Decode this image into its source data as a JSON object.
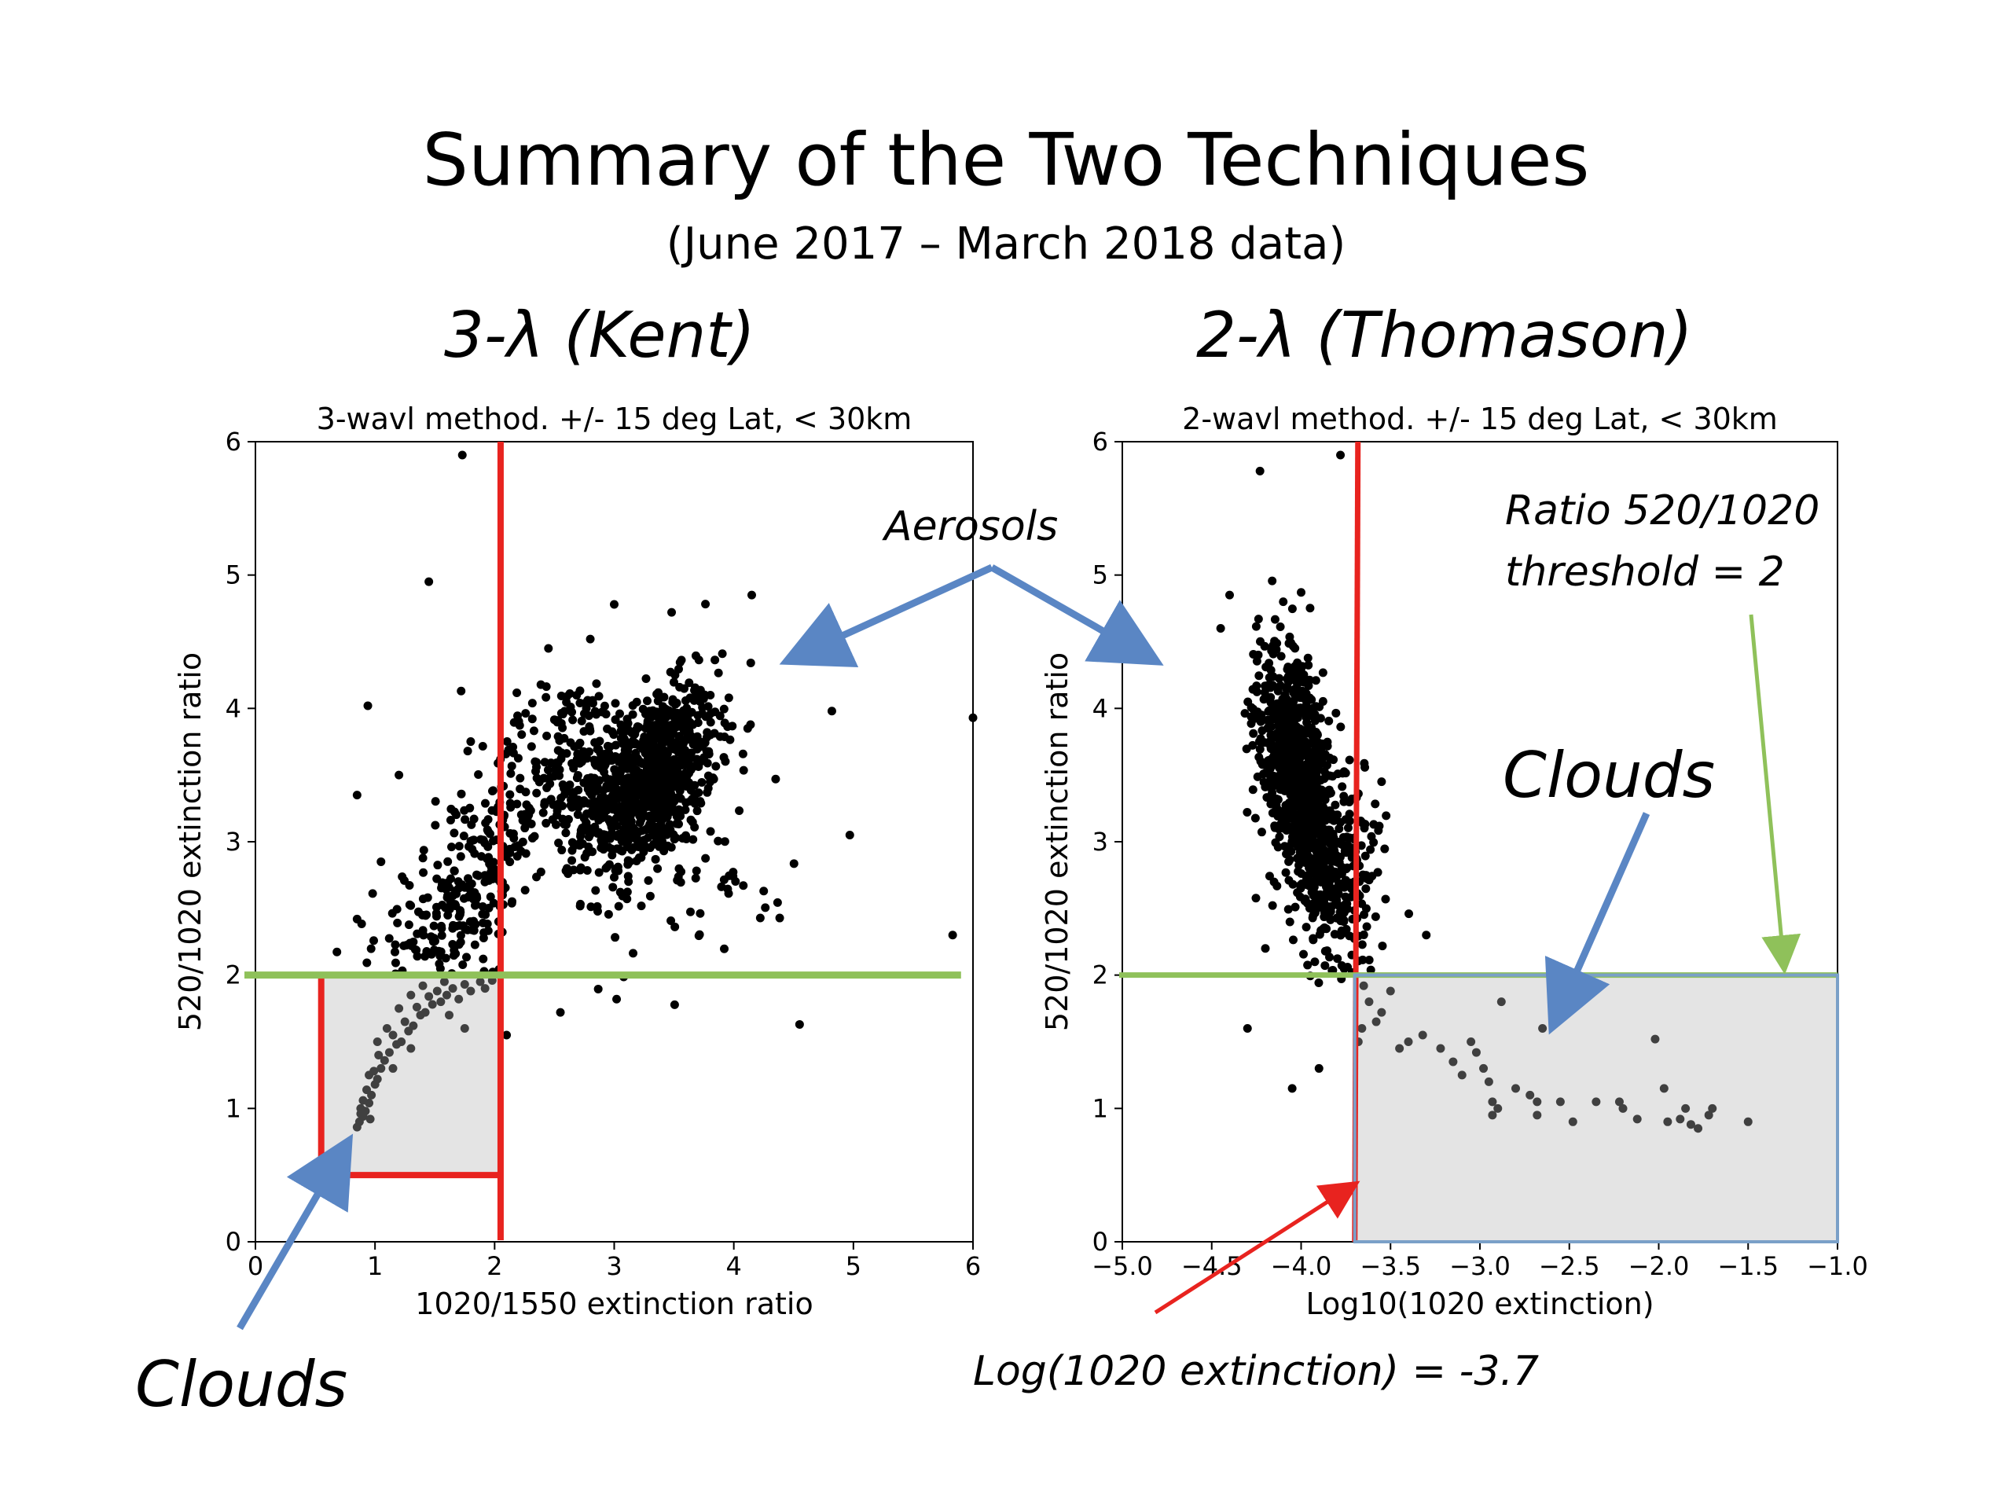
{
  "slide": {
    "title": "Summary of the Two Techniques",
    "subtitle": "(June 2017 – March 2018 data)",
    "left_method_label": "3-λ (Kent)",
    "right_method_label": "2-λ (Thomason)"
  },
  "annotations": {
    "aerosols": "Aerosols",
    "clouds_left": "Clouds",
    "clouds_right": "Clouds",
    "ratio_line1": "Ratio 520/1020",
    "ratio_line2": "threshold = 2",
    "log_threshold": "Log(1020 extinction) = -3.7"
  },
  "colors": {
    "points": "#000000",
    "points_cloud": "#404040",
    "threshold_red": "#e8231f",
    "threshold_green": "#8fc15a",
    "arrow_blue": "#5a86c4",
    "cloud_region_fill": "#e4e4e4",
    "cloud_region_border_right": "#7aa0c8"
  },
  "chart_data": [
    {
      "type": "scatter",
      "title": "3-wavl method.  +/- 15 deg Lat, < 30km",
      "xlabel": "1020/1550 extinction ratio",
      "ylabel": "520/1020 extinction ratio",
      "xlim": [
        0,
        6
      ],
      "ylim": [
        0,
        6
      ],
      "xticks": [
        0,
        1,
        2,
        3,
        4,
        5,
        6
      ],
      "yticks": [
        0,
        1,
        2,
        3,
        4,
        5,
        6
      ],
      "xtick_labels": [
        "0",
        "1",
        "2",
        "3",
        "4",
        "5",
        "6"
      ],
      "ytick_labels": [
        "0",
        "1",
        "2",
        "3",
        "4",
        "5",
        "6"
      ],
      "grid": false,
      "thresholds": {
        "vertical_x": 2.05,
        "horizontal_y": 2.0
      },
      "cloud_region": {
        "x": [
          0.55,
          2.05
        ],
        "y": [
          0.5,
          2.0
        ]
      },
      "clusters": [
        {
          "cx": 3.3,
          "cy": 3.45,
          "sx": 0.28,
          "sy": 0.35,
          "rho": 0.45,
          "n": 900
        },
        {
          "cx": 2.6,
          "cy": 3.55,
          "sx": 0.35,
          "sy": 0.35,
          "rho": 0.3,
          "n": 220
        },
        {
          "cx": 1.8,
          "cy": 2.65,
          "sx": 0.28,
          "sy": 0.4,
          "rho": 0.55,
          "n": 230
        },
        {
          "cx": 1.35,
          "cy": 2.2,
          "sx": 0.3,
          "sy": 0.3,
          "rho": 0.3,
          "n": 50
        },
        {
          "cx": 3.7,
          "cy": 2.6,
          "sx": 0.45,
          "sy": 0.35,
          "rho": 0.0,
          "n": 40
        }
      ],
      "points": [
        [
          1.73,
          5.9
        ],
        [
          1.45,
          4.95
        ],
        [
          0.94,
          4.02
        ],
        [
          1.72,
          4.13
        ],
        [
          3.0,
          4.78
        ],
        [
          4.15,
          4.85
        ],
        [
          4.82,
          3.98
        ],
        [
          6.0,
          3.93
        ],
        [
          4.35,
          3.47
        ],
        [
          4.97,
          3.05
        ],
        [
          4.25,
          2.63
        ],
        [
          5.83,
          2.3
        ],
        [
          4.55,
          1.63
        ],
        [
          2.55,
          1.72
        ],
        [
          3.02,
          1.82
        ],
        [
          2.1,
          1.55
        ],
        [
          0.85,
          3.35
        ],
        [
          1.2,
          3.5
        ],
        [
          0.85,
          2.42
        ],
        [
          1.05,
          2.85
        ],
        [
          2.8,
          4.52
        ],
        [
          2.45,
          4.45
        ],
        [
          3.48,
          4.72
        ]
      ],
      "cloud_points": [
        [
          0.85,
          0.86
        ],
        [
          0.87,
          0.9
        ],
        [
          0.9,
          0.94
        ],
        [
          0.88,
          1.0
        ],
        [
          0.92,
          0.98
        ],
        [
          0.95,
          1.04
        ],
        [
          0.9,
          1.06
        ],
        [
          0.97,
          1.1
        ],
        [
          0.93,
          1.14
        ],
        [
          1.0,
          1.18
        ],
        [
          0.96,
          0.92
        ],
        [
          0.88,
          0.96
        ],
        [
          1.02,
          1.22
        ],
        [
          0.99,
          1.28
        ],
        [
          1.05,
          1.3
        ],
        [
          1.08,
          1.36
        ],
        [
          1.12,
          1.42
        ],
        [
          1.03,
          1.4
        ],
        [
          1.18,
          1.48
        ],
        [
          1.15,
          1.55
        ],
        [
          1.22,
          1.5
        ],
        [
          1.28,
          1.58
        ],
        [
          1.25,
          1.65
        ],
        [
          1.32,
          1.62
        ],
        [
          1.38,
          1.7
        ],
        [
          1.35,
          1.76
        ],
        [
          1.42,
          1.72
        ],
        [
          1.48,
          1.78
        ],
        [
          1.45,
          1.84
        ],
        [
          1.55,
          1.8
        ],
        [
          1.52,
          1.88
        ],
        [
          1.6,
          1.85
        ],
        [
          1.65,
          1.9
        ],
        [
          1.7,
          1.82
        ],
        [
          1.75,
          1.93
        ],
        [
          1.8,
          1.88
        ],
        [
          1.88,
          1.95
        ],
        [
          1.92,
          1.9
        ],
        [
          1.62,
          1.7
        ],
        [
          1.4,
          1.92
        ],
        [
          1.1,
          1.6
        ],
        [
          1.2,
          1.75
        ],
        [
          1.02,
          1.5
        ],
        [
          0.95,
          1.25
        ],
        [
          1.3,
          1.45
        ],
        [
          1.58,
          1.95
        ],
        [
          1.75,
          1.6
        ],
        [
          1.98,
          1.96
        ],
        [
          1.15,
          1.3
        ],
        [
          1.3,
          1.85
        ]
      ]
    },
    {
      "type": "scatter",
      "title": "2-wavl method.  +/- 15 deg Lat, < 30km",
      "xlabel": "Log10(1020 extinction)",
      "ylabel": "520/1020 extinction ratio",
      "xlim": [
        -5.0,
        -1.0
      ],
      "ylim": [
        0,
        6
      ],
      "xticks": [
        -5.0,
        -4.5,
        -4.0,
        -3.5,
        -3.0,
        -2.5,
        -2.0,
        -1.5,
        -1.0
      ],
      "yticks": [
        0,
        1,
        2,
        3,
        4,
        5,
        6
      ],
      "xtick_labels": [
        "−5.0",
        "−4.5",
        "−4.0",
        "−3.5",
        "−3.0",
        "−2.5",
        "−2.0",
        "−1.5",
        "−1.0"
      ],
      "ytick_labels": [
        "0",
        "1",
        "2",
        "3",
        "4",
        "5",
        "6"
      ],
      "grid": false,
      "thresholds": {
        "vertical_x": -3.7,
        "horizontal_y": 2.0
      },
      "cloud_region": {
        "x": [
          -3.7,
          -1.0
        ],
        "y": [
          0,
          2.0
        ]
      },
      "clusters": [
        {
          "cx": -4.02,
          "cy": 3.55,
          "sx": 0.11,
          "sy": 0.42,
          "rho": -0.45,
          "n": 850
        },
        {
          "cx": -3.85,
          "cy": 2.7,
          "sx": 0.12,
          "sy": 0.35,
          "rho": -0.3,
          "n": 230
        },
        {
          "cx": -3.7,
          "cy": 2.9,
          "sx": 0.08,
          "sy": 0.35,
          "rho": 0.0,
          "n": 60
        }
      ],
      "points": [
        [
          -4.23,
          5.78
        ],
        [
          -3.78,
          5.9
        ],
        [
          -4.4,
          4.85
        ],
        [
          -4.0,
          4.87
        ],
        [
          -4.1,
          4.8
        ],
        [
          -3.3,
          2.3
        ],
        [
          -4.3,
          1.6
        ],
        [
          -4.05,
          1.15
        ],
        [
          -3.9,
          1.3
        ],
        [
          -4.2,
          2.2
        ],
        [
          -4.45,
          4.6
        ],
        [
          -3.55,
          3.45
        ]
      ],
      "cloud_points": [
        [
          -3.65,
          1.92
        ],
        [
          -3.62,
          1.8
        ],
        [
          -3.58,
          1.65
        ],
        [
          -3.55,
          1.72
        ],
        [
          -3.5,
          1.88
        ],
        [
          -3.45,
          1.45
        ],
        [
          -3.4,
          1.5
        ],
        [
          -3.32,
          1.55
        ],
        [
          -3.22,
          1.45
        ],
        [
          -3.15,
          1.35
        ],
        [
          -3.1,
          1.25
        ],
        [
          -3.05,
          1.5
        ],
        [
          -3.02,
          1.42
        ],
        [
          -2.98,
          1.3
        ],
        [
          -2.95,
          1.2
        ],
        [
          -2.93,
          1.05
        ],
        [
          -2.93,
          0.95
        ],
        [
          -2.9,
          1.0
        ],
        [
          -2.88,
          1.8
        ],
        [
          -2.8,
          1.15
        ],
        [
          -2.72,
          1.1
        ],
        [
          -2.68,
          0.95
        ],
        [
          -2.68,
          1.05
        ],
        [
          -2.65,
          1.6
        ],
        [
          -2.55,
          1.05
        ],
        [
          -2.48,
          0.9
        ],
        [
          -2.35,
          1.05
        ],
        [
          -2.22,
          1.05
        ],
        [
          -2.2,
          1.0
        ],
        [
          -2.12,
          0.92
        ],
        [
          -2.02,
          1.52
        ],
        [
          -1.97,
          1.15
        ],
        [
          -1.95,
          0.9
        ],
        [
          -1.85,
          1.0
        ],
        [
          -1.82,
          0.88
        ],
        [
          -1.78,
          0.85
        ],
        [
          -1.72,
          0.95
        ],
        [
          -1.7,
          1.0
        ],
        [
          -1.5,
          0.9
        ],
        [
          -1.88,
          0.92
        ],
        [
          -3.68,
          1.5
        ],
        [
          -3.66,
          1.6
        ]
      ]
    }
  ]
}
